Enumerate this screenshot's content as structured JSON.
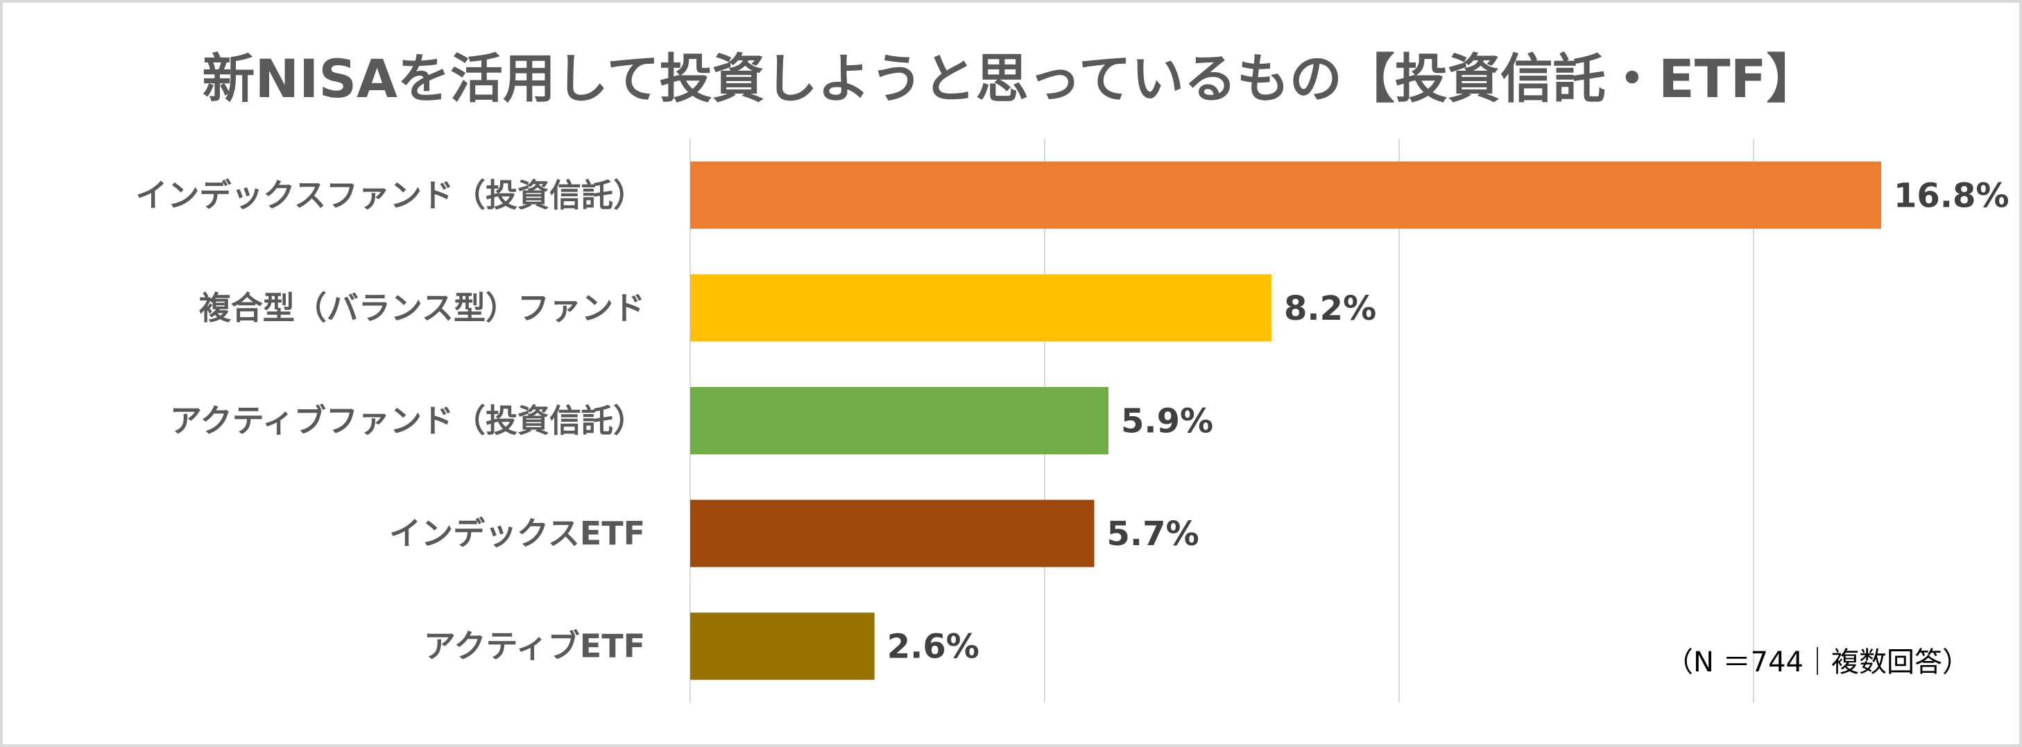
{
  "chart_data": {
    "type": "bar",
    "orientation": "horizontal",
    "title": "新NISAを活用して投資しようと思っているもの【投資信託・ETF】",
    "categories": [
      "インデックスファンド（投資信託）",
      "複合型（バランス型）ファンド",
      "アクティブファンド（投資信託）",
      "インデックスETF",
      "アクティブETF"
    ],
    "values": [
      16.8,
      8.2,
      5.9,
      5.7,
      2.6
    ],
    "value_labels": [
      "16.8%",
      "8.2%",
      "5.9%",
      "5.7%",
      "2.6%"
    ],
    "colors": [
      "#ED7D31",
      "#FFC000",
      "#70AD47",
      "#9E480E",
      "#997300"
    ],
    "xlim": [
      0,
      17.6
    ],
    "x_gridlines": [
      0,
      5,
      10,
      15
    ],
    "grid": true,
    "legend": "none",
    "note": "（N ＝744｜複数回答）"
  }
}
